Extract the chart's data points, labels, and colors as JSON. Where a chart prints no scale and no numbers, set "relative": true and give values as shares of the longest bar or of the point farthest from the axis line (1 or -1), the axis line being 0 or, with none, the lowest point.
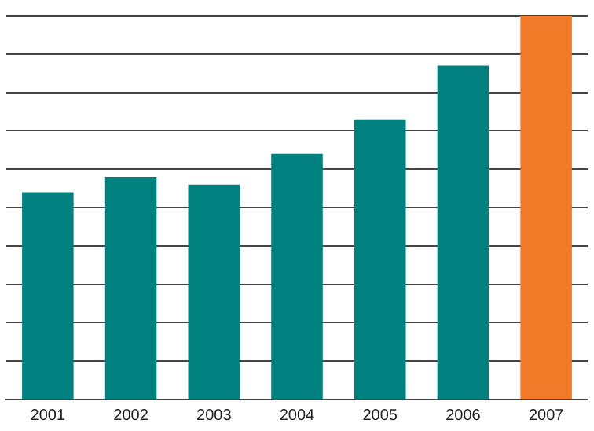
{
  "chart_data": {
    "type": "bar",
    "relative": true,
    "categories": [
      "2001",
      "2002",
      "2003",
      "2004",
      "2005",
      "2006",
      "2007"
    ],
    "values": [
      0.54,
      0.58,
      0.56,
      0.64,
      0.73,
      0.87,
      1
    ],
    "colors": [
      "#00807f",
      "#00807f",
      "#00807f",
      "#00807f",
      "#00807f",
      "#00807f",
      "#f07a28"
    ],
    "grid": "y",
    "legend": false
  }
}
